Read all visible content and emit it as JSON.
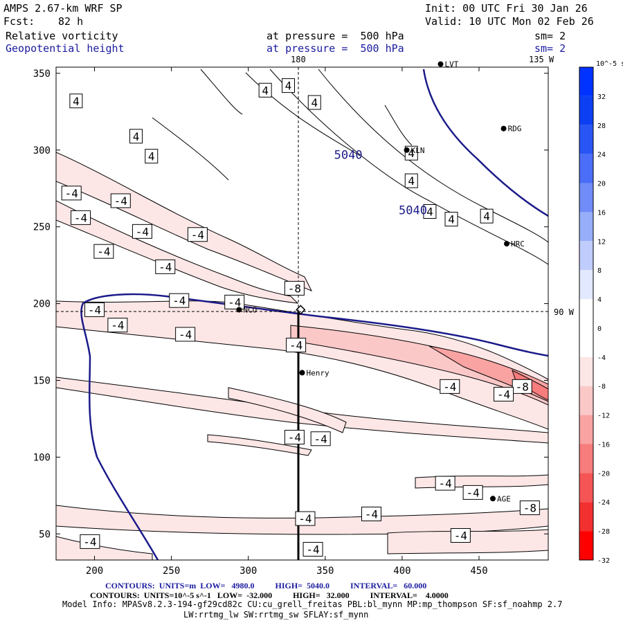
{
  "header": {
    "model": "AMPS 2.67-km WRF SP",
    "fcst_label": "Fcst:",
    "fcst_value": "82 h",
    "init": "Init: 00 UTC Fri 30 Jan 26",
    "valid": "Valid: 10 UTC Mon 02 Feb 26",
    "field1": "Relative vorticity",
    "field1_level": "at pressure =  500 hPa",
    "field1_sm": "sm= 2",
    "field2": "Geopotential height",
    "field2_level": "at pressure =  500 hPa",
    "field2_sm": "sm= 2"
  },
  "map_labels": {
    "lon_180": "180",
    "lon_135w": "135 W",
    "lon_90w": "90 W"
  },
  "stations": [
    {
      "name": "LVT",
      "x": 425,
      "y": 356
    },
    {
      "name": "RDG",
      "x": 466,
      "y": 314
    },
    {
      "name": "KLN",
      "x": 403,
      "y": 300
    },
    {
      "name": "HRC",
      "x": 468,
      "y": 239
    },
    {
      "name": "NCO",
      "x": 294,
      "y": 196
    },
    {
      "name": "Henry",
      "x": 335,
      "y": 155
    },
    {
      "name": "AGE",
      "x": 459,
      "y": 73
    }
  ],
  "chart_data": {
    "type": "contour",
    "xlim": [
      175,
      495
    ],
    "ylim": [
      33,
      354
    ],
    "xticks": [
      200,
      250,
      300,
      350,
      400,
      450
    ],
    "yticks": [
      50,
      100,
      150,
      200,
      250,
      300,
      350
    ],
    "height_contours": [
      {
        "label": "5040",
        "x": 365,
        "y": 297
      },
      {
        "label": "5040",
        "x": 407,
        "y": 261
      }
    ],
    "vorticity_labels": [
      {
        "label": "4",
        "x": 326,
        "y": 342
      },
      {
        "label": "4",
        "x": 311,
        "y": 339
      },
      {
        "label": "4",
        "x": 343,
        "y": 331
      },
      {
        "label": "4",
        "x": 188,
        "y": 332
      },
      {
        "label": "4",
        "x": 227,
        "y": 309
      },
      {
        "label": "4",
        "x": 237,
        "y": 296
      },
      {
        "label": "4",
        "x": 406,
        "y": 298
      },
      {
        "label": "4",
        "x": 406,
        "y": 280
      },
      {
        "label": "4",
        "x": 418,
        "y": 260
      },
      {
        "label": "4",
        "x": 432,
        "y": 255
      },
      {
        "label": "4",
        "x": 455,
        "y": 257
      },
      {
        "label": "-4",
        "x": 185,
        "y": 272
      },
      {
        "label": "-4",
        "x": 217,
        "y": 267
      },
      {
        "label": "-4",
        "x": 191,
        "y": 256
      },
      {
        "label": "-4",
        "x": 231,
        "y": 247
      },
      {
        "label": "-4",
        "x": 267,
        "y": 245
      },
      {
        "label": "-4",
        "x": 206,
        "y": 234
      },
      {
        "label": "-4",
        "x": 246,
        "y": 224
      },
      {
        "label": "-8",
        "x": 330,
        "y": 210
      },
      {
        "label": "-4",
        "x": 255,
        "y": 202
      },
      {
        "label": "-4",
        "x": 291,
        "y": 201
      },
      {
        "label": "-4",
        "x": 200,
        "y": 196
      },
      {
        "label": "-4",
        "x": 215,
        "y": 186
      },
      {
        "label": "-4",
        "x": 259,
        "y": 180
      },
      {
        "label": "-4",
        "x": 331,
        "y": 173
      },
      {
        "label": "-4",
        "x": 431,
        "y": 146
      },
      {
        "label": "-8",
        "x": 478,
        "y": 146
      },
      {
        "label": "-4",
        "x": 466,
        "y": 141
      },
      {
        "label": "-4",
        "x": 330,
        "y": 113
      },
      {
        "label": "-4",
        "x": 347,
        "y": 112
      },
      {
        "label": "-4",
        "x": 428,
        "y": 83
      },
      {
        "label": "-4",
        "x": 446,
        "y": 77
      },
      {
        "label": "-4",
        "x": 337,
        "y": 60
      },
      {
        "label": "-4",
        "x": 380,
        "y": 63
      },
      {
        "label": "-8",
        "x": 483,
        "y": 67
      },
      {
        "label": "-4",
        "x": 438,
        "y": 49
      },
      {
        "label": "-4",
        "x": 342,
        "y": 40
      },
      {
        "label": "-4",
        "x": 197,
        "y": 45
      }
    ],
    "colorbar": {
      "unit": "10^-5 s^-1",
      "levels": [
        32,
        28,
        24,
        20,
        16,
        12,
        8,
        4,
        0,
        -4,
        -8,
        -12,
        -16,
        -20,
        -24,
        -28,
        -32
      ],
      "colors": [
        "#0033ff",
        "#0d3ff2",
        "#2a55f5",
        "#4a6ef7",
        "#6f8cf8",
        "#97aefa",
        "#c0ccfb",
        "#e2e8fd",
        "#ffffff",
        "#ffffff",
        "#fde6e6",
        "#fbc8c8",
        "#f9a3a3",
        "#f77c7c",
        "#f55555",
        "#f33030",
        "#ff0000"
      ]
    }
  },
  "footer": {
    "line1_label": "CONTOURS:  UNITS=m  LOW=   4980.0          HIGH=  5040.0          INTERVAL=   60.000",
    "line2_label": "CONTOURS:  UNITS=10^-5 s^-1   LOW=  -32.000          HIGH=   32.000          INTERVAL=    4.0000",
    "model_info": "Model Info: MPASv8.2.3-194-gf29cd82c CU:cu_grell_freitas PBL:bl_mynn MP:mp_thompson SF:sf_noahmp 2.7",
    "model_info2": "LW:rrtmg_lw SW:rrtmg_sw SFLAY:sf_mynn"
  }
}
